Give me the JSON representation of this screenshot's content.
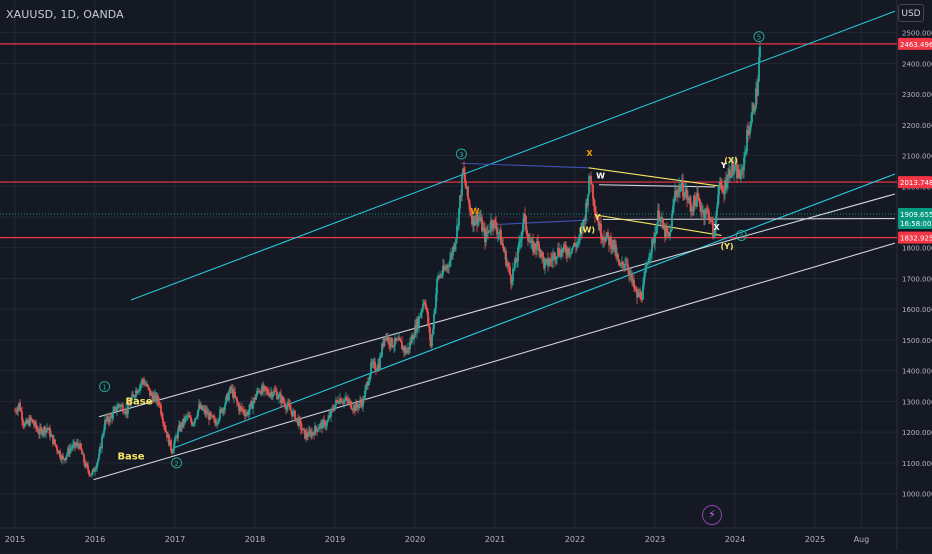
{
  "header": {
    "symbol_text": "XAUUSD, 1D, OANDA",
    "currency_button": "USD"
  },
  "colors": {
    "background": "#151924",
    "grid": "#232734",
    "axis_text": "#b2b5be",
    "candle_up": "#26a69a",
    "candle_down": "#ef5350",
    "resistance": "#f23645",
    "channel_cyan": "#26c6da",
    "channel_white": "#d1d4dc",
    "wave_yellow": "#f5e663",
    "wave_orange": "#ff9800",
    "wave_green": "#26a69a",
    "blue_line": "#3f51b5",
    "current_price": "#089981"
  },
  "chart_data": {
    "type": "candlestick",
    "title": "XAUUSD, 1D, OANDA",
    "currency": "USD",
    "x_ticks": [
      "2015",
      "2016",
      "2017",
      "2018",
      "2019",
      "2020",
      "2021",
      "2022",
      "2023",
      "2024",
      "2025",
      "Aug"
    ],
    "x_tick_years": [
      2015.0,
      2016.0,
      2017.0,
      2018.0,
      2019.0,
      2020.0,
      2021.0,
      2022.0,
      2023.0,
      2024.0,
      2025.0,
      2025.58
    ],
    "y_ticks": [
      1000,
      1100,
      1200,
      1300,
      1400,
      1500,
      1600,
      1700,
      1800,
      1900,
      2000,
      2100,
      2200,
      2300,
      2400,
      2500
    ],
    "y_tick_labels": [
      "1000.000",
      "1100.000",
      "1200.000",
      "1300.000",
      "1400.000",
      "1500.000",
      "1600.000",
      "1700.000",
      "1800.000",
      "1900.000",
      "2000.000",
      "2100.000",
      "2200.000",
      "2300.000",
      "2400.000",
      "2500.000"
    ],
    "xlim": [
      2015.0,
      2026.0
    ],
    "ylim": [
      940,
      2590
    ],
    "grid": true,
    "price_series": [
      [
        2015.0,
        1270
      ],
      [
        2015.05,
        1290
      ],
      [
        2015.12,
        1220
      ],
      [
        2015.2,
        1240
      ],
      [
        2015.3,
        1200
      ],
      [
        2015.4,
        1215
      ],
      [
        2015.5,
        1160
      ],
      [
        2015.6,
        1110
      ],
      [
        2015.7,
        1150
      ],
      [
        2015.8,
        1160
      ],
      [
        2015.88,
        1090
      ],
      [
        2015.96,
        1060
      ],
      [
        2016.05,
        1120
      ],
      [
        2016.12,
        1230
      ],
      [
        2016.2,
        1250
      ],
      [
        2016.3,
        1290
      ],
      [
        2016.4,
        1270
      ],
      [
        2016.5,
        1330
      ],
      [
        2016.6,
        1370
      ],
      [
        2016.7,
        1320
      ],
      [
        2016.8,
        1300
      ],
      [
        2016.88,
        1210
      ],
      [
        2016.96,
        1140
      ],
      [
        2017.05,
        1210
      ],
      [
        2017.15,
        1250
      ],
      [
        2017.22,
        1230
      ],
      [
        2017.3,
        1280
      ],
      [
        2017.4,
        1260
      ],
      [
        2017.5,
        1230
      ],
      [
        2017.6,
        1280
      ],
      [
        2017.7,
        1340
      ],
      [
        2017.8,
        1280
      ],
      [
        2017.9,
        1260
      ],
      [
        2017.98,
        1300
      ],
      [
        2018.05,
        1340
      ],
      [
        2018.15,
        1330
      ],
      [
        2018.25,
        1330
      ],
      [
        2018.35,
        1300
      ],
      [
        2018.45,
        1270
      ],
      [
        2018.55,
        1230
      ],
      [
        2018.62,
        1190
      ],
      [
        2018.7,
        1195
      ],
      [
        2018.8,
        1220
      ],
      [
        2018.9,
        1230
      ],
      [
        2018.98,
        1280
      ],
      [
        2019.05,
        1310
      ],
      [
        2019.15,
        1300
      ],
      [
        2019.25,
        1280
      ],
      [
        2019.35,
        1300
      ],
      [
        2019.45,
        1410
      ],
      [
        2019.55,
        1420
      ],
      [
        2019.62,
        1520
      ],
      [
        2019.7,
        1490
      ],
      [
        2019.8,
        1490
      ],
      [
        2019.9,
        1460
      ],
      [
        2019.98,
        1520
      ],
      [
        2020.05,
        1570
      ],
      [
        2020.12,
        1640
      ],
      [
        2020.2,
        1480
      ],
      [
        2020.28,
        1700
      ],
      [
        2020.38,
        1730
      ],
      [
        2020.45,
        1770
      ],
      [
        2020.52,
        1850
      ],
      [
        2020.6,
        2050
      ],
      [
        2020.66,
        1960
      ],
      [
        2020.72,
        1890
      ],
      [
        2020.8,
        1900
      ],
      [
        2020.88,
        1830
      ],
      [
        2020.96,
        1890
      ],
      [
        2021.05,
        1850
      ],
      [
        2021.12,
        1780
      ],
      [
        2021.2,
        1700
      ],
      [
        2021.28,
        1770
      ],
      [
        2021.36,
        1900
      ],
      [
        2021.45,
        1800
      ],
      [
        2021.55,
        1810
      ],
      [
        2021.62,
        1740
      ],
      [
        2021.7,
        1760
      ],
      [
        2021.78,
        1790
      ],
      [
        2021.88,
        1790
      ],
      [
        2021.96,
        1800
      ],
      [
        2022.05,
        1820
      ],
      [
        2022.12,
        1900
      ],
      [
        2022.19,
        2040
      ],
      [
        2022.25,
        1930
      ],
      [
        2022.32,
        1850
      ],
      [
        2022.4,
        1830
      ],
      [
        2022.48,
        1810
      ],
      [
        2022.56,
        1730
      ],
      [
        2022.64,
        1760
      ],
      [
        2022.72,
        1680
      ],
      [
        2022.78,
        1640
      ],
      [
        2022.84,
        1650
      ],
      [
        2022.92,
        1780
      ],
      [
        2022.98,
        1820
      ],
      [
        2023.05,
        1920
      ],
      [
        2023.1,
        1860
      ],
      [
        2023.18,
        1830
      ],
      [
        2023.25,
        1980
      ],
      [
        2023.32,
        2000
      ],
      [
        2023.38,
        1980
      ],
      [
        2023.45,
        1930
      ],
      [
        2023.52,
        1960
      ],
      [
        2023.6,
        1920
      ],
      [
        2023.68,
        1910
      ],
      [
        2023.74,
        1830
      ],
      [
        2023.79,
        2000
      ],
      [
        2023.85,
        1980
      ],
      [
        2023.9,
        2030
      ],
      [
        2023.96,
        2060
      ],
      [
        2024.0,
        2050
      ],
      [
        2024.08,
        2030
      ],
      [
        2024.15,
        2160
      ],
      [
        2024.22,
        2240
      ],
      [
        2024.28,
        2320
      ],
      [
        2024.3,
        2410
      ],
      [
        2024.32,
        2463
      ]
    ],
    "horizontal_levels": [
      {
        "price": 2463.496,
        "label": "2463.496",
        "color": "#f23645"
      },
      {
        "price": 2013.748,
        "label": "2013.748",
        "color": "#f23645"
      },
      {
        "price": 1832.925,
        "label": "1832.925",
        "color": "#f23645"
      }
    ],
    "current_price": {
      "price": 1909.655,
      "label": "1909.655",
      "countdown": "16:58:00"
    },
    "trend_lines": [
      {
        "color": "#26c6da",
        "from": [
          2016.45,
          1630
        ],
        "to": [
          2026.0,
          2570
        ]
      },
      {
        "color": "#26c6da",
        "from": [
          2017.0,
          1150
        ],
        "to": [
          2026.0,
          2040
        ]
      },
      {
        "color": "#d1d4dc",
        "from": [
          2016.05,
          1250
        ],
        "to": [
          2026.0,
          1975
        ]
      },
      {
        "color": "#d1d4dc",
        "from": [
          2015.98,
          1045
        ],
        "to": [
          2026.0,
          1815
        ]
      },
      {
        "color": "#d1d4dc",
        "from": [
          2022.35,
          1892
        ],
        "to": [
          2026.0,
          1895
        ]
      },
      {
        "color": "#3f51b5",
        "from": [
          2020.57,
          2075
        ],
        "to": [
          2022.17,
          2060
        ]
      },
      {
        "color": "#3f51b5",
        "from": [
          2020.96,
          1875
        ],
        "to": [
          2022.17,
          1890
        ]
      },
      {
        "color": "#f5e663",
        "from": [
          2022.17,
          2060
        ],
        "to": [
          2023.83,
          2000
        ]
      },
      {
        "color": "#f5e663",
        "from": [
          2022.3,
          1905
        ],
        "to": [
          2023.83,
          1840
        ]
      },
      {
        "color": "#d1d4dc",
        "from": [
          2022.3,
          2005
        ],
        "to": [
          2023.75,
          1998
        ]
      }
    ],
    "wave_labels": [
      {
        "text": "1",
        "at": [
          2016.12,
          1348
        ],
        "style": "circle-green"
      },
      {
        "text": "2",
        "at": [
          2017.02,
          1100
        ],
        "style": "circle-green"
      },
      {
        "text": "3",
        "at": [
          2020.58,
          2105
        ],
        "style": "circle-green"
      },
      {
        "text": "4",
        "at": [
          2024.08,
          1840
        ],
        "style": "circle-green"
      },
      {
        "text": "5",
        "at": [
          2024.3,
          2487
        ],
        "style": "circle-green"
      },
      {
        "text": "Base",
        "at": [
          2016.55,
          1300
        ],
        "style": "yellow"
      },
      {
        "text": "Base",
        "at": [
          2016.45,
          1120
        ],
        "style": "yellow"
      },
      {
        "text": "X",
        "at": [
          2022.18,
          2108
        ],
        "style": "orange"
      },
      {
        "text": "W",
        "at": [
          2020.75,
          1920
        ],
        "style": "orange"
      },
      {
        "text": "W",
        "at": [
          2022.32,
          2035
        ],
        "style": "white"
      },
      {
        "text": "Y",
        "at": [
          2022.28,
          1900
        ],
        "style": "yellow"
      },
      {
        "text": "(W)",
        "at": [
          2022.15,
          1860
        ],
        "style": "yellow"
      },
      {
        "text": "X",
        "at": [
          2023.77,
          1867
        ],
        "style": "white"
      },
      {
        "text": "Y",
        "at": [
          2023.86,
          2070
        ],
        "style": "white"
      },
      {
        "text": "(X)",
        "at": [
          2023.95,
          2085
        ],
        "style": "yellow"
      },
      {
        "text": "(Y)",
        "at": [
          2023.9,
          1805
        ],
        "style": "yellow"
      }
    ]
  }
}
